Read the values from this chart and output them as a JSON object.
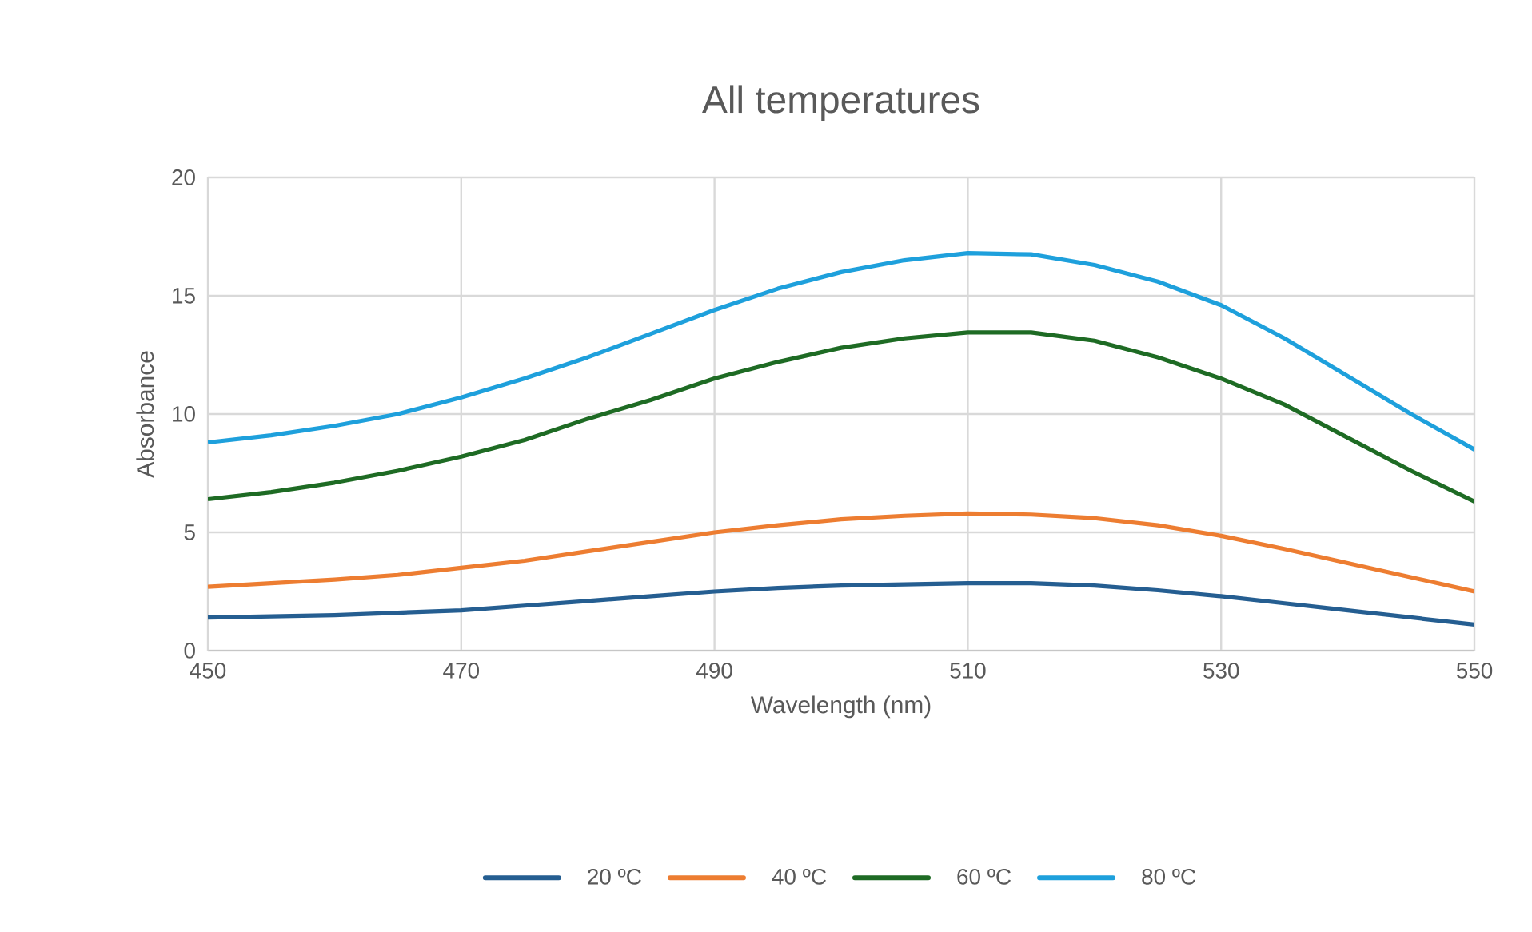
{
  "chart_data": {
    "type": "line",
    "title": "All temperatures",
    "xlabel": "Wavelength (nm)",
    "ylabel": "Absorbance",
    "x": [
      450,
      455,
      460,
      465,
      470,
      475,
      480,
      485,
      490,
      495,
      500,
      505,
      510,
      515,
      520,
      525,
      530,
      535,
      540,
      545,
      550
    ],
    "xlim": [
      450,
      550
    ],
    "xticks": [
      450,
      470,
      490,
      510,
      530,
      550
    ],
    "ylim": [
      0,
      20
    ],
    "yticks": [
      0,
      5,
      10,
      15,
      20
    ],
    "grid": true,
    "legend": "bottom",
    "marker": "none",
    "line_style": "solid",
    "series": [
      {
        "name": "20 ºC",
        "color": "#255e91",
        "values": [
          1.4,
          1.45,
          1.5,
          1.6,
          1.7,
          1.9,
          2.1,
          2.3,
          2.5,
          2.65,
          2.75,
          2.8,
          2.85,
          2.85,
          2.75,
          2.55,
          2.3,
          2.0,
          1.7,
          1.4,
          1.1
        ]
      },
      {
        "name": "40 ºC",
        "color": "#ed7d31",
        "values": [
          2.7,
          2.85,
          3.0,
          3.2,
          3.5,
          3.8,
          4.2,
          4.6,
          5.0,
          5.3,
          5.55,
          5.7,
          5.8,
          5.75,
          5.6,
          5.3,
          4.85,
          4.3,
          3.7,
          3.1,
          2.5
        ]
      },
      {
        "name": "60 ºC",
        "color": "#1e6b24",
        "values": [
          6.4,
          6.7,
          7.1,
          7.6,
          8.2,
          8.9,
          9.8,
          10.6,
          11.5,
          12.2,
          12.8,
          13.2,
          13.45,
          13.45,
          13.1,
          12.4,
          11.5,
          10.4,
          9.0,
          7.6,
          6.3
        ]
      },
      {
        "name": "80 ºC",
        "color": "#1ea0dc",
        "values": [
          8.8,
          9.1,
          9.5,
          10.0,
          10.7,
          11.5,
          12.4,
          13.4,
          14.4,
          15.3,
          16.0,
          16.5,
          16.8,
          16.75,
          16.3,
          15.6,
          14.6,
          13.2,
          11.6,
          10.0,
          8.5
        ]
      }
    ]
  }
}
